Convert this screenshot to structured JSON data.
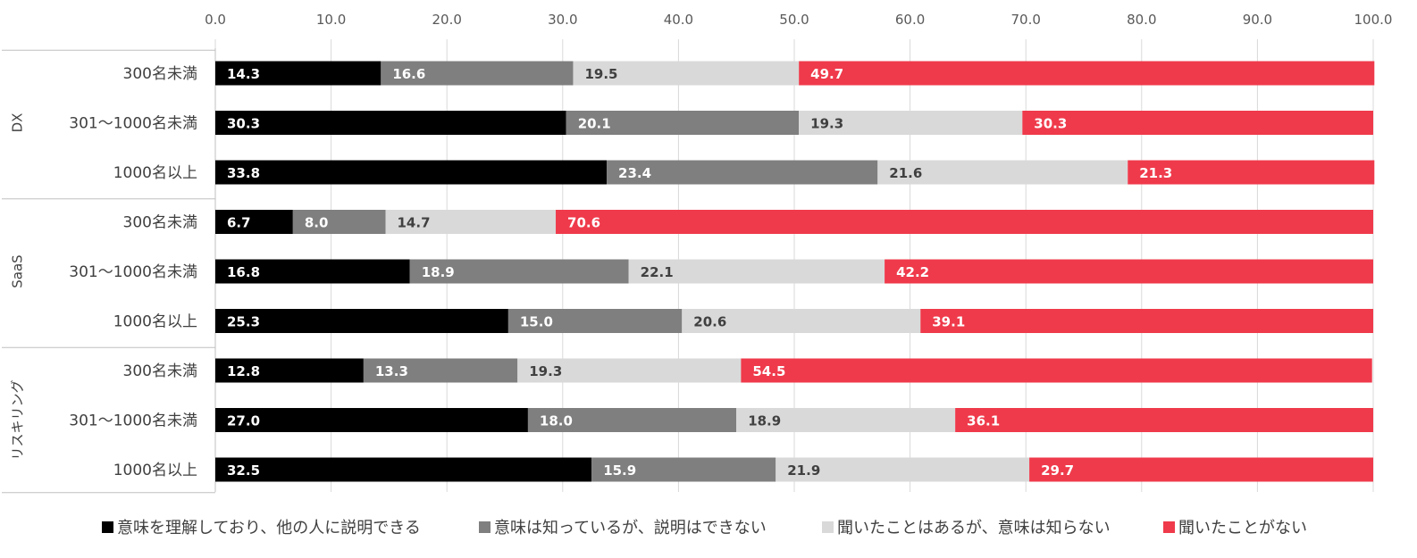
{
  "chart_data": {
    "type": "bar",
    "orientation": "horizontal",
    "stacked": true,
    "xlim": [
      0,
      100
    ],
    "x_ticks": [
      "0.0",
      "10.0",
      "20.0",
      "30.0",
      "40.0",
      "50.0",
      "60.0",
      "70.0",
      "80.0",
      "90.0",
      "100.0"
    ],
    "x_axis_position": "top",
    "grid": true,
    "legend_position": "bottom",
    "groups": [
      {
        "name": "DX",
        "categories": [
          {
            "label": "300名未満",
            "values": [
              14.3,
              16.6,
              19.5,
              49.7
            ]
          },
          {
            "label": "301〜1000名未満",
            "values": [
              30.3,
              20.1,
              19.3,
              30.3
            ]
          },
          {
            "label": "1000名以上",
            "values": [
              33.8,
              23.4,
              21.6,
              21.3
            ]
          }
        ]
      },
      {
        "name": "SaaS",
        "categories": [
          {
            "label": "300名未満",
            "values": [
              6.7,
              8.0,
              14.7,
              70.6
            ]
          },
          {
            "label": "301〜1000名未満",
            "values": [
              16.8,
              18.9,
              22.1,
              42.2
            ]
          },
          {
            "label": "1000名以上",
            "values": [
              25.3,
              15.0,
              20.6,
              39.1
            ]
          }
        ]
      },
      {
        "name": "リスキリング",
        "categories": [
          {
            "label": "300名未満",
            "values": [
              12.8,
              13.3,
              19.3,
              54.5
            ]
          },
          {
            "label": "301〜1000名未満",
            "values": [
              27.0,
              18.0,
              18.9,
              36.1
            ]
          },
          {
            "label": "1000名以上",
            "values": [
              32.5,
              15.9,
              21.9,
              29.7
            ]
          }
        ]
      }
    ],
    "series": [
      {
        "name": "意味を理解しており、他の人に説明できる",
        "color": "#000000",
        "label_color": "#ffffff",
        "label_bold": true
      },
      {
        "name": "意味は知っているが、説明はできない",
        "color": "#7f7f7f",
        "label_color": "#ffffff",
        "label_bold": true
      },
      {
        "name": "聞いたことはあるが、意味は知らない",
        "color": "#d9d9d9",
        "label_color": "#404040",
        "label_bold": false
      },
      {
        "name": "聞いたことがない",
        "color": "#ef3a4b",
        "label_color": "#ffffff",
        "label_bold": true
      }
    ]
  }
}
